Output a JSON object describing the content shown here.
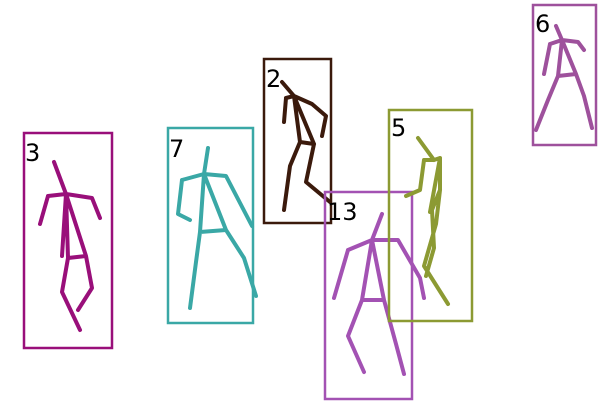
{
  "people": [
    {
      "id": "3",
      "label": "3",
      "color": "#990f7a"
    },
    {
      "id": "7",
      "label": "7",
      "color": "#3aa8a6"
    },
    {
      "id": "2",
      "label": "2",
      "color": "#3b1a0c"
    },
    {
      "id": "13",
      "label": "13",
      "color": "#a352b3"
    },
    {
      "id": "5",
      "label": "5",
      "color": "#8c9a33"
    },
    {
      "id": "6",
      "label": "6",
      "color": "#9e519c"
    }
  ]
}
